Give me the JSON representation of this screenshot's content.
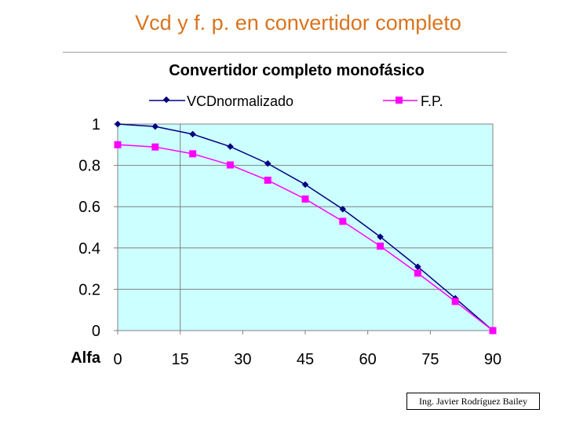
{
  "slide": {
    "title": "Vcd y f. p.  en convertidor completo",
    "footer": "Ing. Javier Rodríguez Bailey"
  },
  "chart_data": {
    "type": "line",
    "title": "Convertidor completo monofásico",
    "xlabel": "Alfa",
    "ylabel": "",
    "x": [
      0,
      9,
      18,
      27,
      36,
      45,
      54,
      63,
      72,
      81,
      90
    ],
    "x_ticks": [
      "0",
      "15",
      "30",
      "45",
      "60",
      "75",
      "90"
    ],
    "y_ticks": [
      "0",
      "0.2",
      "0.4",
      "0.6",
      "0.8",
      "1"
    ],
    "xlim": [
      0,
      90
    ],
    "ylim": [
      0,
      1
    ],
    "legend_position": "top",
    "plot_background": "#ccffff",
    "series": [
      {
        "name": "VCDnormalizado",
        "color": "#000080",
        "marker": "diamond",
        "values": [
          1.0,
          0.988,
          0.951,
          0.891,
          0.809,
          0.707,
          0.588,
          0.454,
          0.309,
          0.156,
          0.0
        ]
      },
      {
        "name": "F.P.",
        "color": "#ff00ff",
        "marker": "square",
        "values": [
          0.9,
          0.889,
          0.856,
          0.802,
          0.728,
          0.637,
          0.529,
          0.409,
          0.278,
          0.141,
          0.0
        ]
      }
    ]
  }
}
